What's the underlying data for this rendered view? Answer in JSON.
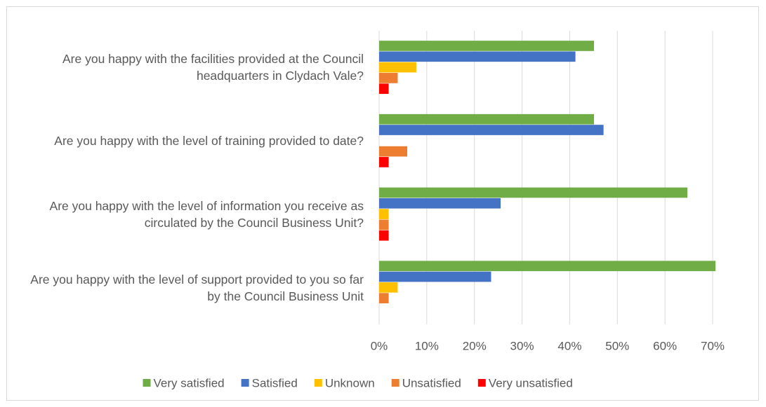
{
  "chart_data": {
    "type": "bar",
    "orientation": "horizontal",
    "categories": [
      "Are you happy with the facilities provided at the Council headquarters in Clydach Vale?",
      "Are you happy with the level of training provided to date?",
      "Are you happy with the level of information you receive as circulated by the Council Business Unit?",
      "Are you happy with the level of support provided to you so far by the Council Business Unit"
    ],
    "series": [
      {
        "name": "Very satisfied",
        "color": "#70ad47",
        "values": [
          45.1,
          45.1,
          64.7,
          70.6
        ]
      },
      {
        "name": "Satisfied",
        "color": "#4472c4",
        "values": [
          41.2,
          47.1,
          25.5,
          23.5
        ]
      },
      {
        "name": "Unknown",
        "color": "#ffc000",
        "values": [
          7.8,
          0,
          2,
          3.9
        ]
      },
      {
        "name": "Unsatisfied",
        "color": "#ed7d31",
        "values": [
          3.9,
          5.9,
          2,
          2
        ]
      },
      {
        "name": "Very unsatisfied",
        "color": "#ff0000",
        "values": [
          2,
          2,
          2,
          0
        ]
      }
    ],
    "xlim": [
      0,
      70
    ],
    "xticks": [
      {
        "value": 0,
        "label": "0%"
      },
      {
        "value": 10,
        "label": "10%"
      },
      {
        "value": 20,
        "label": "20%"
      },
      {
        "value": 30,
        "label": "30%"
      },
      {
        "value": 40,
        "label": "40%"
      },
      {
        "value": 50,
        "label": "50%"
      },
      {
        "value": 60,
        "label": "60%"
      },
      {
        "value": 70,
        "label": "70%"
      }
    ],
    "grid": true,
    "legend": "bottom"
  }
}
